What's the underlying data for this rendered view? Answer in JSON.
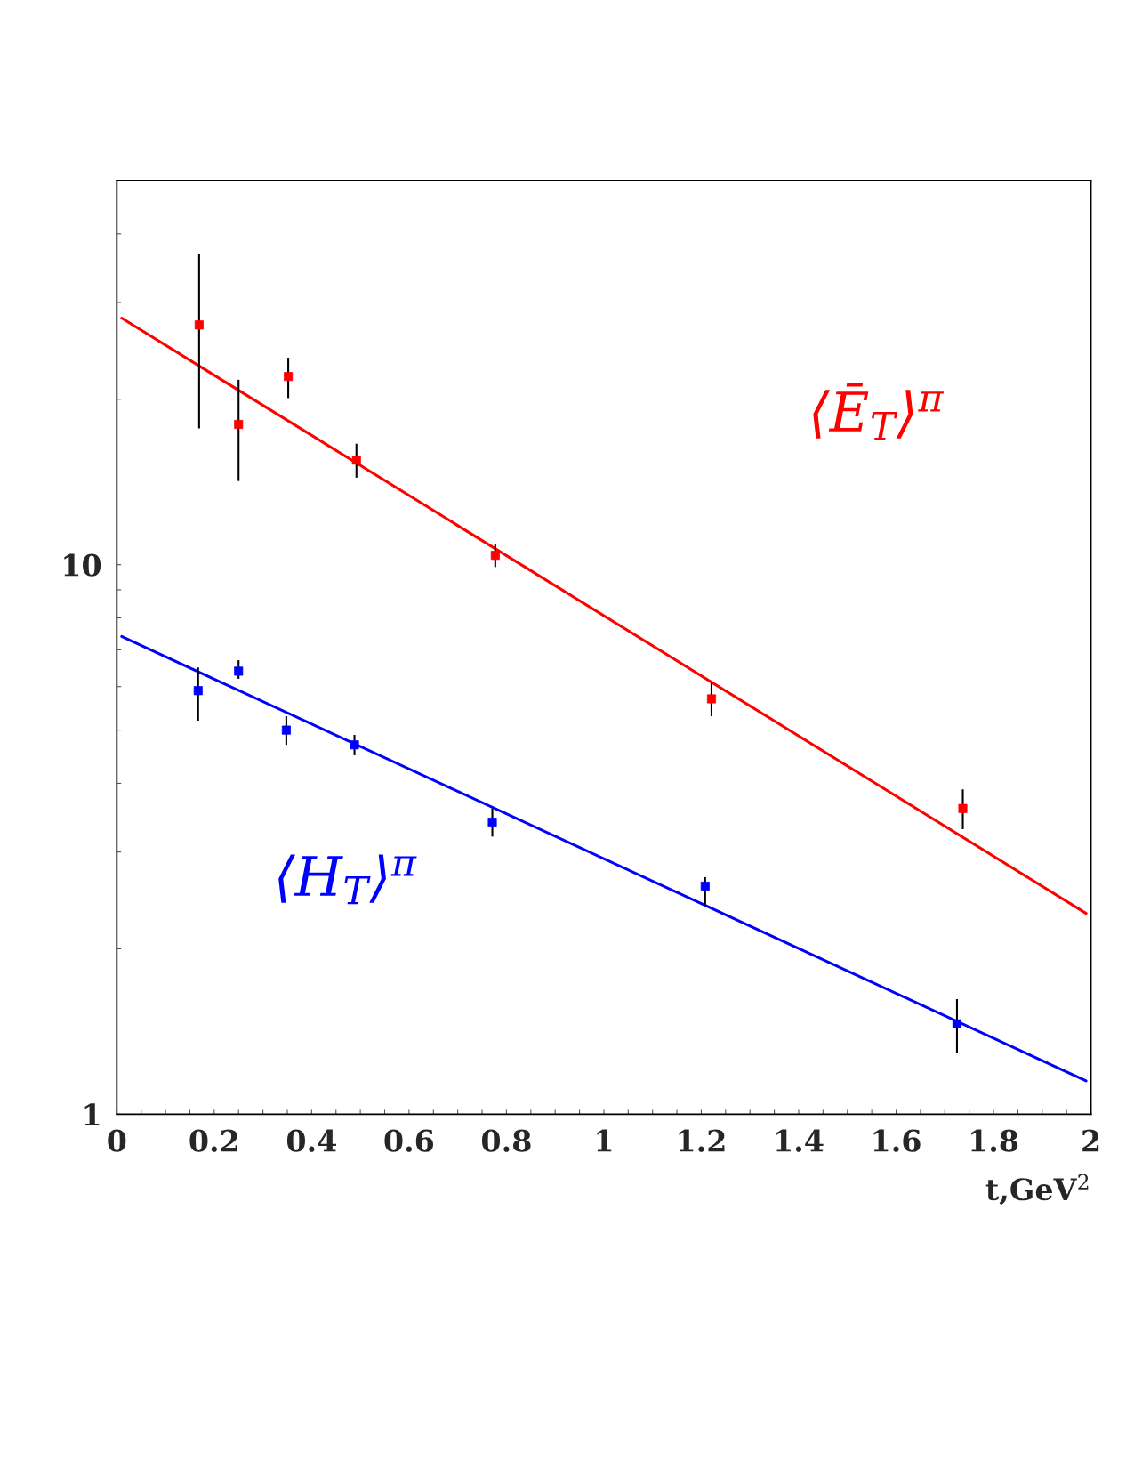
{
  "chart_data": {
    "type": "scatter",
    "xlabel": "t,GeV$^{2}$",
    "log": "y",
    "grid": false,
    "legend": false,
    "xlim": [
      0,
      2
    ],
    "ylim": [
      1,
      50
    ],
    "xticks": [
      0,
      {
        "value": 0.05,
        "label": null
      },
      {
        "value": 0.1,
        "label": null
      },
      {
        "value": 0.15,
        "label": null
      },
      0.2,
      {
        "value": 0.25,
        "label": null
      },
      {
        "value": 0.3,
        "label": null
      },
      {
        "value": 0.35,
        "label": null
      },
      0.4,
      {
        "value": 0.45,
        "label": null
      },
      {
        "value": 0.5,
        "label": null
      },
      {
        "value": 0.55,
        "label": null
      },
      0.6,
      {
        "value": 0.65,
        "label": null
      },
      {
        "value": 0.7,
        "label": null
      },
      {
        "value": 0.75,
        "label": null
      },
      0.8,
      {
        "value": 0.85,
        "label": null
      },
      {
        "value": 0.9,
        "label": null
      },
      {
        "value": 0.95,
        "label": null
      },
      1,
      {
        "value": 1.05,
        "label": null
      },
      {
        "value": 1.1,
        "label": null
      },
      {
        "value": 1.15,
        "label": null
      },
      1.2,
      {
        "value": 1.25,
        "label": null
      },
      {
        "value": 1.3,
        "label": null
      },
      {
        "value": 1.35,
        "label": null
      },
      1.4,
      {
        "value": 1.45,
        "label": null
      },
      {
        "value": 1.5,
        "label": null
      },
      {
        "value": 1.55,
        "label": null
      },
      1.6,
      {
        "value": 1.65,
        "label": null
      },
      {
        "value": 1.7,
        "label": null
      },
      {
        "value": 1.75,
        "label": null
      },
      1.8,
      {
        "value": 1.85,
        "label": null
      },
      {
        "value": 1.9,
        "label": null
      },
      {
        "value": 1.95,
        "label": null
      },
      2
    ],
    "yticks": [
      1,
      {
        "value": 2,
        "label": null
      },
      {
        "value": 3,
        "label": null
      },
      {
        "value": 4,
        "label": null
      },
      {
        "value": 5,
        "label": null
      },
      {
        "value": 6,
        "label": null
      },
      {
        "value": 7,
        "label": null
      },
      {
        "value": 8,
        "label": null
      },
      {
        "value": 9,
        "label": null
      },
      10,
      {
        "value": 20,
        "label": null
      },
      {
        "value": 30,
        "label": null
      },
      {
        "value": 40,
        "label": null
      }
    ],
    "series": [
      {
        "name": "⟨Ē$_{T}$⟩$^{π}$",
        "marker": "square",
        "color": "#ff0000",
        "x": [
          0.169,
          0.25,
          0.352,
          0.492,
          0.777,
          1.221,
          1.737
        ],
        "values": [
          27.3,
          18.0,
          22.0,
          15.5,
          10.4,
          5.7,
          3.6
        ],
        "errors": [
          [
            17.7,
            36.7
          ],
          [
            14.2,
            21.7
          ],
          [
            20.1,
            23.8
          ],
          [
            14.4,
            16.6
          ],
          [
            9.9,
            10.9
          ],
          [
            5.3,
            6.1
          ],
          [
            3.3,
            3.9
          ]
        ]
      },
      {
        "name": "⟨H$_{T}$⟩$^{π}$",
        "marker": "square",
        "color": "#0000ff",
        "x": [
          0.167,
          0.25,
          0.348,
          0.488,
          0.771,
          1.208,
          1.725
        ],
        "values": [
          5.9,
          6.4,
          5.0,
          4.7,
          3.4,
          2.6,
          1.46
        ],
        "errors": [
          [
            5.2,
            6.5
          ],
          [
            6.2,
            6.7
          ],
          [
            4.7,
            5.3
          ],
          [
            4.5,
            4.9
          ],
          [
            3.2,
            3.6
          ],
          [
            2.4,
            2.7
          ],
          [
            1.29,
            1.62
          ]
        ]
      },
      {
        "type": "line",
        "color": "#ff0000",
        "x": [
          0.01,
          1.99
        ],
        "values": [
          28.1,
          2.32
        ]
      },
      {
        "type": "line",
        "color": "#0000ff",
        "x": [
          0.01,
          1.99
        ],
        "values": [
          7.4,
          1.15
        ]
      }
    ]
  }
}
